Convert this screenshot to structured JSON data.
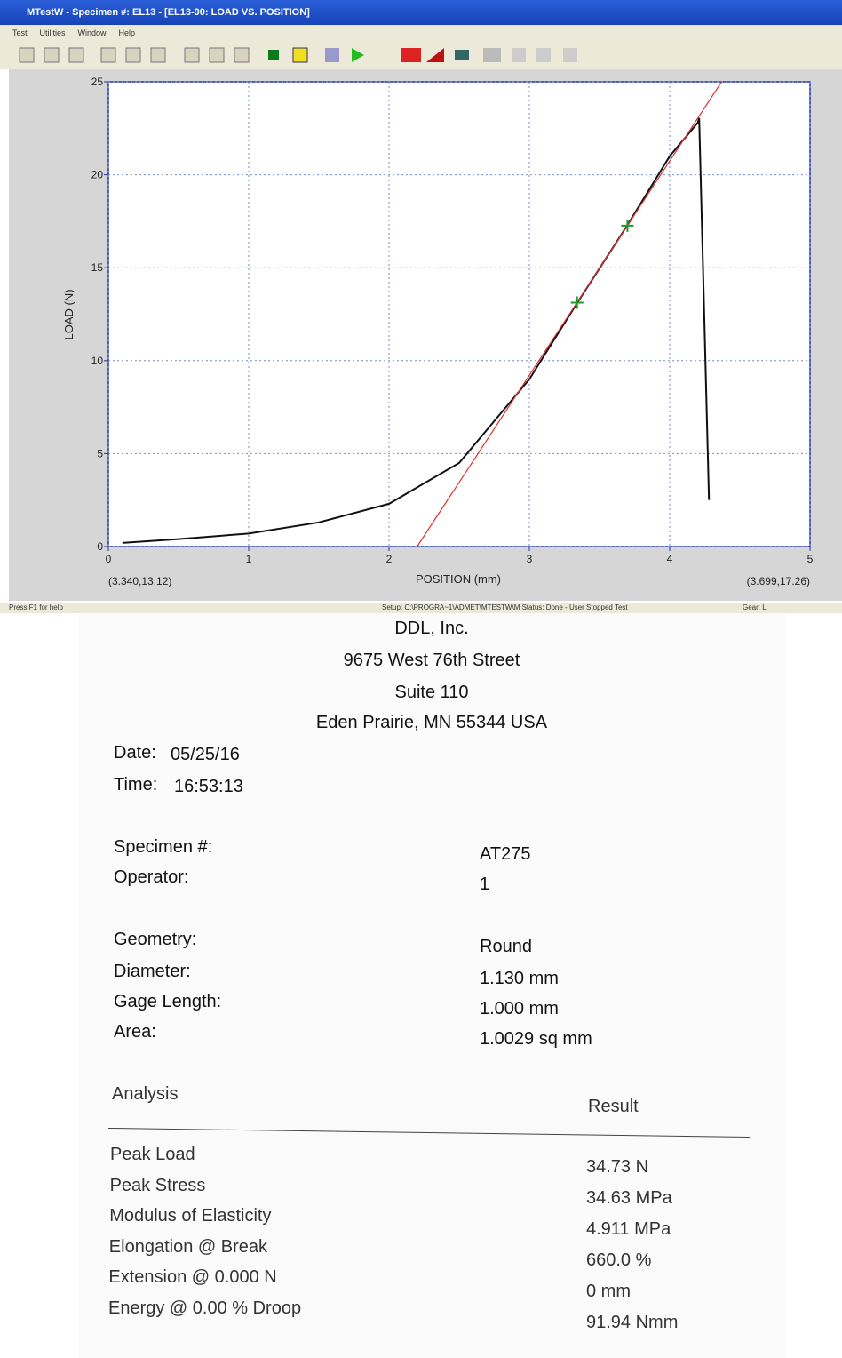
{
  "window": {
    "title": "MTestW - Specimen #: EL13 - [EL13-90: LOAD VS. POSITION]",
    "menu": [
      "Test",
      "Utilities",
      "Window",
      "Help"
    ],
    "status_left": "Press F1 for help",
    "status_mid": "Setup: C:\\PROGRA~1\\ADMET\\MTESTW\\M Status: Done - User Stopped Test",
    "status_right": "Gear: L"
  },
  "chart_data": {
    "type": "line",
    "xlabel": "POSITION (mm)",
    "ylabel": "LOAD (N)",
    "xlim": [
      0,
      5
    ],
    "ylim": [
      0,
      25
    ],
    "xticks": [
      0,
      1,
      2,
      3,
      4,
      5
    ],
    "yticks": [
      0,
      5,
      10,
      15,
      20,
      25
    ],
    "grid": true,
    "series": [
      {
        "color": "#111111",
        "x": [
          0.1,
          0.5,
          1,
          1.5,
          2,
          2.5,
          3,
          3.34,
          3.7,
          4,
          4.2,
          4.21,
          4.28
        ],
        "values": [
          0.2,
          0.4,
          0.7,
          1.3,
          2.3,
          4.5,
          9,
          13.1,
          17.3,
          21,
          22.8,
          23.05,
          2.5
        ]
      },
      {
        "color": "#e03030",
        "x": [
          2.2,
          4.37
        ],
        "values": [
          0,
          25
        ]
      }
    ],
    "markers": {
      "color": "#1a9a2a",
      "x": [
        3.34,
        3.699
      ],
      "values": [
        13.12,
        17.26
      ]
    },
    "corner_left": "(3.340,13.12)",
    "corner_right": "(3.699,17.26)"
  },
  "report": {
    "header": [
      "DDL, Inc.",
      "9675 West 76th Street",
      "Suite 110",
      "Eden Prairie, MN 55344   USA"
    ],
    "date": {
      "label": "Date:",
      "value": "05/25/16"
    },
    "time": {
      "label": "Time:",
      "value": "16:53:13"
    },
    "fields": [
      [
        "Specimen #:",
        "AT275"
      ],
      [
        "Operator:",
        "1"
      ],
      [
        "Geometry:",
        "Round"
      ],
      [
        "Diameter:",
        "1.130 mm"
      ],
      [
        "Gage Length:",
        "1.000 mm"
      ],
      [
        "Area:",
        "1.0029 sq mm"
      ]
    ],
    "analysis_header": [
      "Analysis",
      "Result"
    ],
    "analysis": [
      [
        "Peak Load",
        "34.73 N"
      ],
      [
        "Peak Stress",
        "34.63 MPa"
      ],
      [
        "Modulus of Elasticity",
        "4.911 MPa"
      ],
      [
        "Elongation @ Break",
        "660.0 %"
      ],
      [
        "Extension @ 0.000 N",
        "0 mm"
      ],
      [
        "Energy @ 0.00 % Droop",
        "91.94 Nmm"
      ]
    ]
  }
}
